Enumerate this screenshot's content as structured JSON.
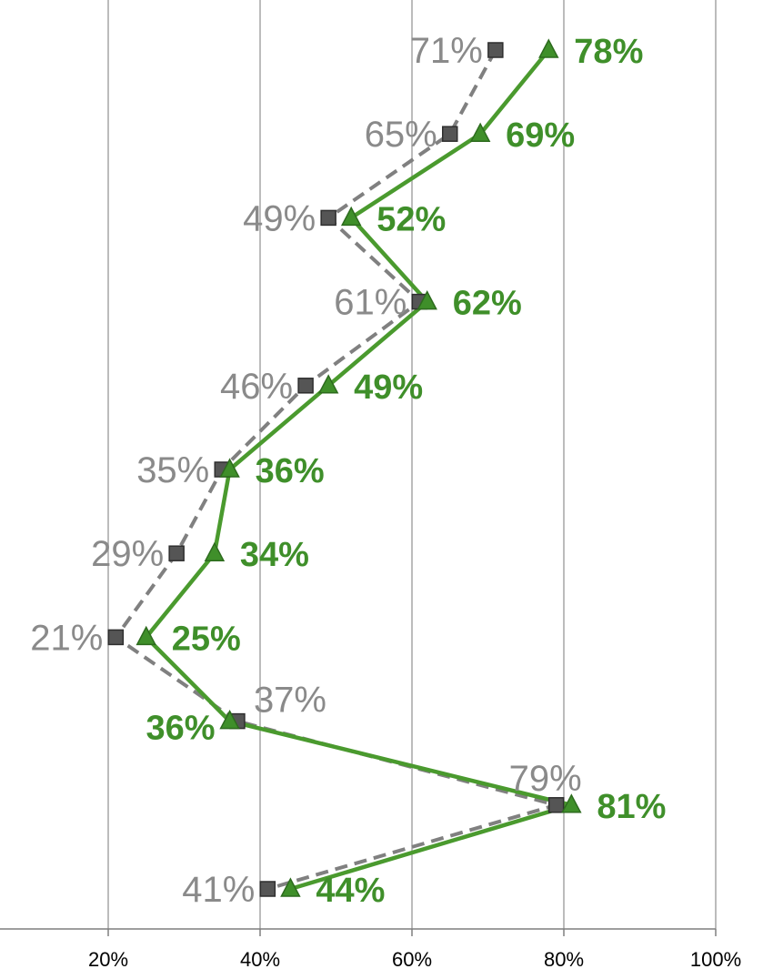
{
  "chart_data": {
    "type": "line",
    "orientation": "horizontal-values",
    "title": "",
    "xlabel": "",
    "ylabel": "",
    "xlim": [
      0,
      100
    ],
    "x_ticks": [
      "20%",
      "40%",
      "60%",
      "80%",
      "100%"
    ],
    "grid": "vertical",
    "legend": "none",
    "series": [
      {
        "marker": "square",
        "line_style": "dashed",
        "color": "#808080",
        "values": [
          71,
          65,
          49,
          61,
          46,
          35,
          29,
          21,
          37,
          79,
          41
        ],
        "labels": [
          "71%",
          "65%",
          "49%",
          "61%",
          "46%",
          "35%",
          "29%",
          "21%",
          "37%",
          "79%",
          "41%"
        ]
      },
      {
        "marker": "triangle",
        "line_style": "solid",
        "color": "#4a9a2e",
        "values": [
          78,
          69,
          52,
          62,
          49,
          36,
          34,
          25,
          36,
          81,
          44
        ],
        "labels": [
          "78%",
          "69%",
          "52%",
          "62%",
          "49%",
          "36%",
          "34%",
          "25%",
          "36%",
          "81%",
          "44%"
        ]
      }
    ]
  }
}
